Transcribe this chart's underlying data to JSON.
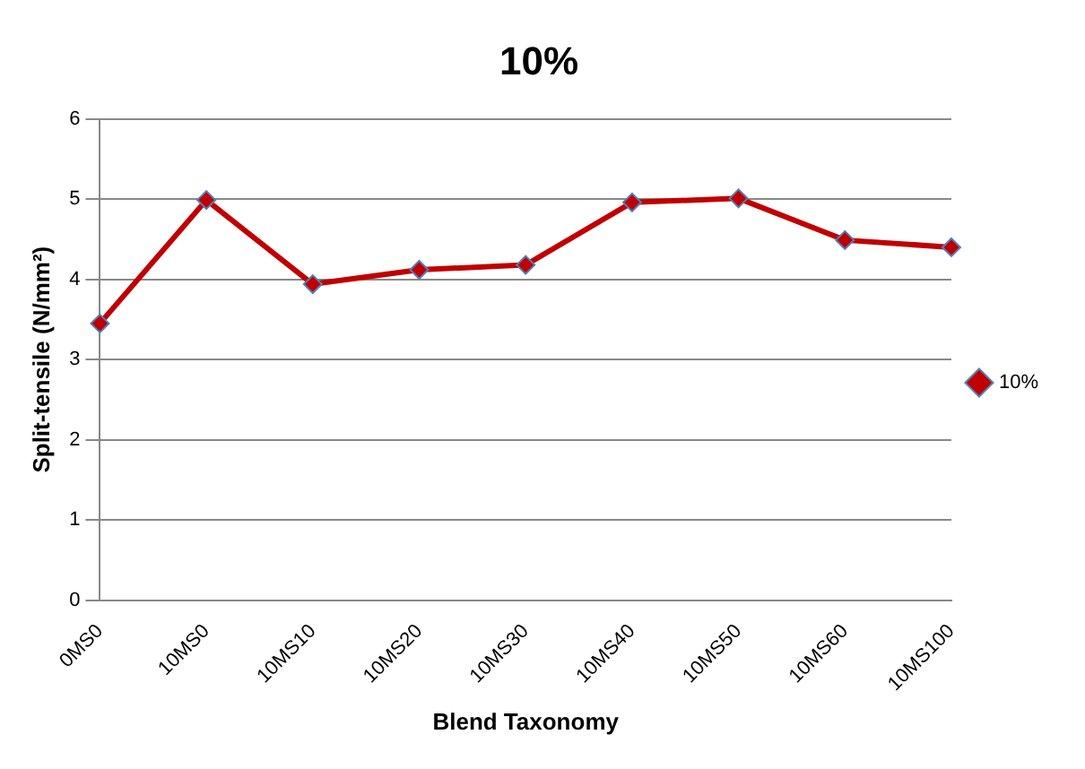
{
  "chart_data": {
    "type": "line",
    "title": "10%",
    "xlabel": "Blend Taxonomy",
    "ylabel": "Split-tensile (N/mm²)",
    "categories": [
      "0MS0",
      "10MS0",
      "10MS10",
      "10MS20",
      "10MS30",
      "10MS40",
      "10MS50",
      "10MS60",
      "10MS100"
    ],
    "series": [
      {
        "name": "10%",
        "color": "#c00000",
        "values": [
          3.45,
          4.99,
          3.94,
          4.12,
          4.18,
          4.96,
          5.01,
          4.49,
          4.4
        ]
      }
    ],
    "ylim": [
      0,
      6
    ],
    "yticks": [
      0,
      1,
      2,
      3,
      4,
      5,
      6
    ],
    "grid": "y",
    "legend": "right",
    "marker": "diamond",
    "line_style": "solid"
  }
}
